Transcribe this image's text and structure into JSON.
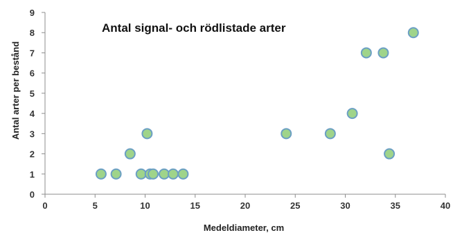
{
  "chart_data": {
    "type": "scatter",
    "title": "Antal signal- och rödlistade arter",
    "xlabel": "Medeldiameter, cm",
    "ylabel": "Antal arter per bestånd",
    "xlim": [
      0,
      40
    ],
    "ylim": [
      0,
      9
    ],
    "x_ticks": [
      "0",
      "5",
      "10",
      "15",
      "20",
      "25",
      "30",
      "35",
      "40"
    ],
    "y_ticks": [
      "0",
      "1",
      "2",
      "3",
      "4",
      "5",
      "6",
      "7",
      "8",
      "9"
    ],
    "grid": false,
    "legend": "none",
    "marker_fill": "#9fd48a",
    "marker_edge": "#6b9fc4",
    "points": [
      {
        "x": 5.6,
        "y": 1
      },
      {
        "x": 7.1,
        "y": 1
      },
      {
        "x": 8.5,
        "y": 2
      },
      {
        "x": 9.6,
        "y": 1
      },
      {
        "x": 10.2,
        "y": 3
      },
      {
        "x": 10.5,
        "y": 1
      },
      {
        "x": 10.8,
        "y": 1
      },
      {
        "x": 11.9,
        "y": 1
      },
      {
        "x": 12.8,
        "y": 1
      },
      {
        "x": 13.8,
        "y": 1
      },
      {
        "x": 24.1,
        "y": 3
      },
      {
        "x": 28.5,
        "y": 3
      },
      {
        "x": 30.7,
        "y": 4
      },
      {
        "x": 32.1,
        "y": 7
      },
      {
        "x": 33.8,
        "y": 7
      },
      {
        "x": 34.4,
        "y": 2
      },
      {
        "x": 36.8,
        "y": 8
      }
    ]
  }
}
